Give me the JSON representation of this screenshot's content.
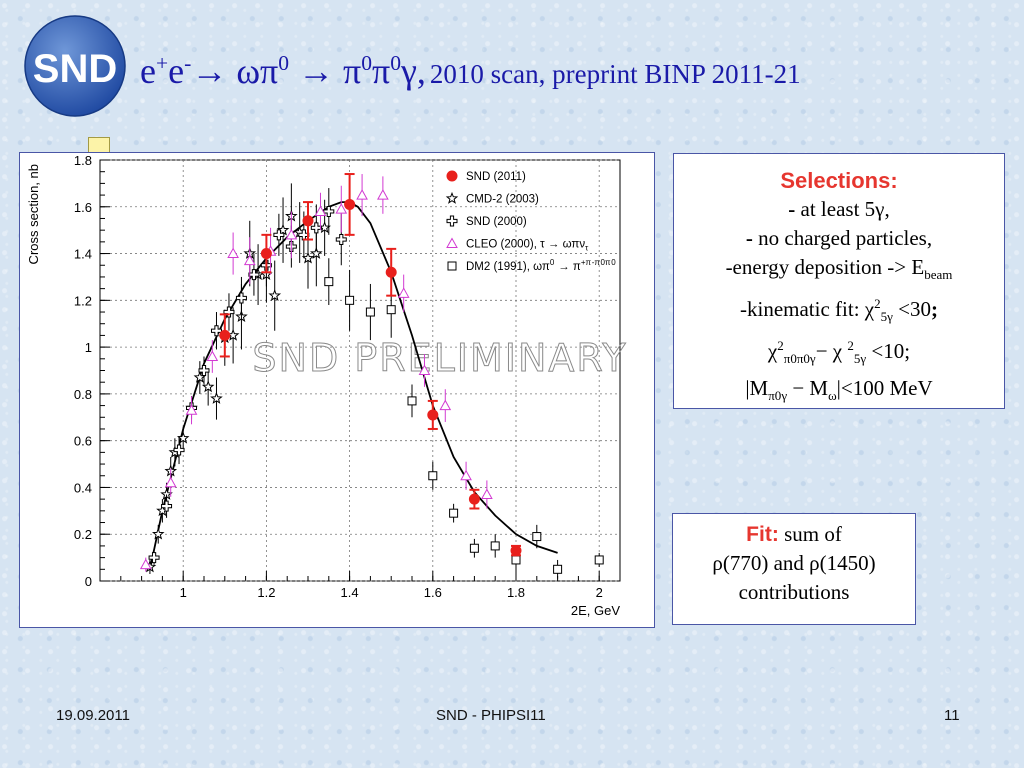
{
  "title": {
    "reaction_html": "e<sup>+</sup>e<sup>-</sup>→ ωπ<sup>0</sup> → π<sup>0</sup>π<sup>0</sup>γ,",
    "scan": "2010 scan, preprint BINP 2011-21"
  },
  "logo": {
    "text": "SND",
    "color": "#2f5fb0"
  },
  "selections": {
    "heading": "Selections:",
    "lines_html": [
      "<b>-</b> at least 5γ,",
      "<b>-</b> no charged particles,",
      "-energy deposition -&gt; E<sub>beam</sub>",
      "-kinematic fit: χ<sup>2</sup><sub>5γ</sub> &lt;30<b>;</b>",
      "χ<sup>2</sup><sub>π0π0γ</sub>− χ <sup>2</sup><sub>5γ</sub> &lt;10;",
      "|M<sub>π0γ</sub> − M<sub>ω</sub>|&lt;100 MeV"
    ]
  },
  "fit": {
    "heading": "Fit:",
    "text1": "sum of",
    "text2": "ρ(770) and ρ(1450)",
    "text3": "contributions"
  },
  "footer": {
    "date": "19.09.2011",
    "center": "SND - PHIPSI11",
    "page": "11"
  },
  "chart_data": {
    "type": "scatter",
    "xlabel": "2E, GeV",
    "ylabel": "Cross section, nb",
    "xlim": [
      0.8,
      2.05
    ],
    "ylim": [
      0,
      1.8
    ],
    "xticks": [
      1,
      1.2,
      1.4,
      1.6,
      1.8,
      2
    ],
    "xtick_labels": [
      "1",
      "1.2",
      "1.4",
      "1.6",
      "1.8",
      "2"
    ],
    "yticks": [
      0,
      0.2,
      0.4,
      0.6,
      0.8,
      1,
      1.2,
      1.4,
      1.6,
      1.8
    ],
    "ytick_labels": [
      "0",
      "0.2",
      "0.4",
      "0.6",
      "0.8",
      "1",
      "1.2",
      "1.4",
      "1.6",
      "1.8"
    ],
    "grid": true,
    "watermark": "SND PRELIMINARY",
    "legend_position": "top-right",
    "series": [
      {
        "name": "SND (2011)",
        "marker": "circle-filled",
        "color": "#e8201c",
        "points": [
          {
            "x": 1.1,
            "y": 1.05,
            "err": 0.09
          },
          {
            "x": 1.2,
            "y": 1.4,
            "err": 0.08
          },
          {
            "x": 1.3,
            "y": 1.54,
            "err": 0.08
          },
          {
            "x": 1.4,
            "y": 1.61,
            "err": 0.13
          },
          {
            "x": 1.5,
            "y": 1.32,
            "err": 0.1
          },
          {
            "x": 1.6,
            "y": 0.71,
            "err": 0.06
          },
          {
            "x": 1.7,
            "y": 0.35,
            "err": 0.04
          },
          {
            "x": 1.8,
            "y": 0.13,
            "err": 0.02
          }
        ]
      },
      {
        "name": "CMD-2 (2003)",
        "marker": "star-open",
        "color": "#000000",
        "points": [
          {
            "x": 0.92,
            "y": 0.06,
            "err": 0.03
          },
          {
            "x": 0.94,
            "y": 0.2,
            "err": 0.04
          },
          {
            "x": 0.95,
            "y": 0.3,
            "err": 0.05
          },
          {
            "x": 0.96,
            "y": 0.37,
            "err": 0.05
          },
          {
            "x": 0.97,
            "y": 0.47,
            "err": 0.06
          },
          {
            "x": 0.98,
            "y": 0.55,
            "err": 0.06
          },
          {
            "x": 1.0,
            "y": 0.61,
            "err": 0.05
          },
          {
            "x": 1.02,
            "y": 0.74,
            "err": 0.05
          },
          {
            "x": 1.04,
            "y": 0.87,
            "err": 0.07
          },
          {
            "x": 1.06,
            "y": 0.83,
            "err": 0.08
          },
          {
            "x": 1.08,
            "y": 0.78,
            "err": 0.09
          },
          {
            "x": 1.1,
            "y": 1.04,
            "err": 0.12
          },
          {
            "x": 1.12,
            "y": 1.05,
            "err": 0.12
          },
          {
            "x": 1.14,
            "y": 1.13,
            "err": 0.14
          },
          {
            "x": 1.16,
            "y": 1.4,
            "err": 0.14
          },
          {
            "x": 1.18,
            "y": 1.31,
            "err": 0.13
          },
          {
            "x": 1.2,
            "y": 1.31,
            "err": 0.12
          },
          {
            "x": 1.22,
            "y": 1.22,
            "err": 0.15
          },
          {
            "x": 1.24,
            "y": 1.5,
            "err": 0.14
          },
          {
            "x": 1.26,
            "y": 1.56,
            "err": 0.14
          },
          {
            "x": 1.28,
            "y": 1.49,
            "err": 0.13
          },
          {
            "x": 1.3,
            "y": 1.38,
            "err": 0.13
          },
          {
            "x": 1.32,
            "y": 1.4,
            "err": 0.14
          },
          {
            "x": 1.34,
            "y": 1.51,
            "err": 0.12
          }
        ]
      },
      {
        "name": "SND (2000)",
        "marker": "cross-open",
        "color": "#000000",
        "points": [
          {
            "x": 0.93,
            "y": 0.1,
            "err": 0.03
          },
          {
            "x": 0.96,
            "y": 0.32,
            "err": 0.05
          },
          {
            "x": 0.99,
            "y": 0.56,
            "err": 0.06
          },
          {
            "x": 1.02,
            "y": 0.74,
            "err": 0.05
          },
          {
            "x": 1.05,
            "y": 0.9,
            "err": 0.06
          },
          {
            "x": 1.08,
            "y": 1.07,
            "err": 0.08
          },
          {
            "x": 1.11,
            "y": 1.15,
            "err": 0.08
          },
          {
            "x": 1.14,
            "y": 1.21,
            "err": 0.09
          },
          {
            "x": 1.17,
            "y": 1.31,
            "err": 0.09
          },
          {
            "x": 1.2,
            "y": 1.35,
            "err": 0.09
          },
          {
            "x": 1.23,
            "y": 1.48,
            "err": 0.09
          },
          {
            "x": 1.26,
            "y": 1.43,
            "err": 0.09
          },
          {
            "x": 1.29,
            "y": 1.48,
            "err": 0.1
          },
          {
            "x": 1.32,
            "y": 1.51,
            "err": 0.1
          },
          {
            "x": 1.35,
            "y": 1.58,
            "err": 0.1
          },
          {
            "x": 1.38,
            "y": 1.46,
            "err": 0.11
          }
        ]
      },
      {
        "name": "CLEO (2000), τ → ωπν_τ",
        "marker": "triangle-open",
        "color": "#d23ad2",
        "points": [
          {
            "x": 0.91,
            "y": 0.07,
            "err": 0.03
          },
          {
            "x": 0.97,
            "y": 0.42,
            "err": 0.06
          },
          {
            "x": 1.02,
            "y": 0.73,
            "err": 0.06
          },
          {
            "x": 1.07,
            "y": 0.96,
            "err": 0.07
          },
          {
            "x": 1.12,
            "y": 1.4,
            "err": 0.09
          },
          {
            "x": 1.16,
            "y": 1.37,
            "err": 0.1
          },
          {
            "x": 1.21,
            "y": 1.41,
            "err": 0.1
          },
          {
            "x": 1.26,
            "y": 1.48,
            "err": 0.1
          },
          {
            "x": 1.33,
            "y": 1.58,
            "err": 0.08
          },
          {
            "x": 1.38,
            "y": 1.59,
            "err": 0.1
          },
          {
            "x": 1.43,
            "y": 1.65,
            "err": 0.09
          },
          {
            "x": 1.48,
            "y": 1.65,
            "err": 0.08
          },
          {
            "x": 1.53,
            "y": 1.23,
            "err": 0.08
          },
          {
            "x": 1.58,
            "y": 0.9,
            "err": 0.07
          },
          {
            "x": 1.63,
            "y": 0.75,
            "err": 0.07
          },
          {
            "x": 1.68,
            "y": 0.45,
            "err": 0.06
          },
          {
            "x": 1.73,
            "y": 0.37,
            "err": 0.06
          }
        ]
      },
      {
        "name": "DM2 (1991), ωπ^0 → π^+π^-π^0π^0",
        "marker": "square-open",
        "color": "#000000",
        "points": [
          {
            "x": 1.35,
            "y": 1.28,
            "err": 0.1
          },
          {
            "x": 1.4,
            "y": 1.2,
            "err": 0.13
          },
          {
            "x": 1.45,
            "y": 1.15,
            "err": 0.12
          },
          {
            "x": 1.5,
            "y": 1.16,
            "err": 0.12
          },
          {
            "x": 1.55,
            "y": 0.77,
            "err": 0.07
          },
          {
            "x": 1.6,
            "y": 0.45,
            "err": 0.06
          },
          {
            "x": 1.65,
            "y": 0.29,
            "err": 0.04
          },
          {
            "x": 1.7,
            "y": 0.14,
            "err": 0.04
          },
          {
            "x": 1.75,
            "y": 0.15,
            "err": 0.05
          },
          {
            "x": 1.8,
            "y": 0.09,
            "err": 0.05
          },
          {
            "x": 1.85,
            "y": 0.19,
            "err": 0.05
          },
          {
            "x": 1.9,
            "y": 0.05,
            "err": 0.04
          },
          {
            "x": 2.0,
            "y": 0.09,
            "err": 0.03
          }
        ]
      }
    ],
    "fit_curve": {
      "name": "fit",
      "color": "#000000",
      "x": [
        0.92,
        0.95,
        1.0,
        1.05,
        1.1,
        1.15,
        1.2,
        1.25,
        1.3,
        1.35,
        1.38,
        1.4,
        1.42,
        1.45,
        1.5,
        1.55,
        1.6,
        1.65,
        1.7,
        1.75,
        1.8,
        1.85,
        1.9
      ],
      "y": [
        0.05,
        0.3,
        0.65,
        0.93,
        1.12,
        1.27,
        1.38,
        1.47,
        1.54,
        1.6,
        1.62,
        1.62,
        1.6,
        1.53,
        1.32,
        1.05,
        0.75,
        0.53,
        0.38,
        0.28,
        0.2,
        0.15,
        0.12
      ]
    }
  }
}
